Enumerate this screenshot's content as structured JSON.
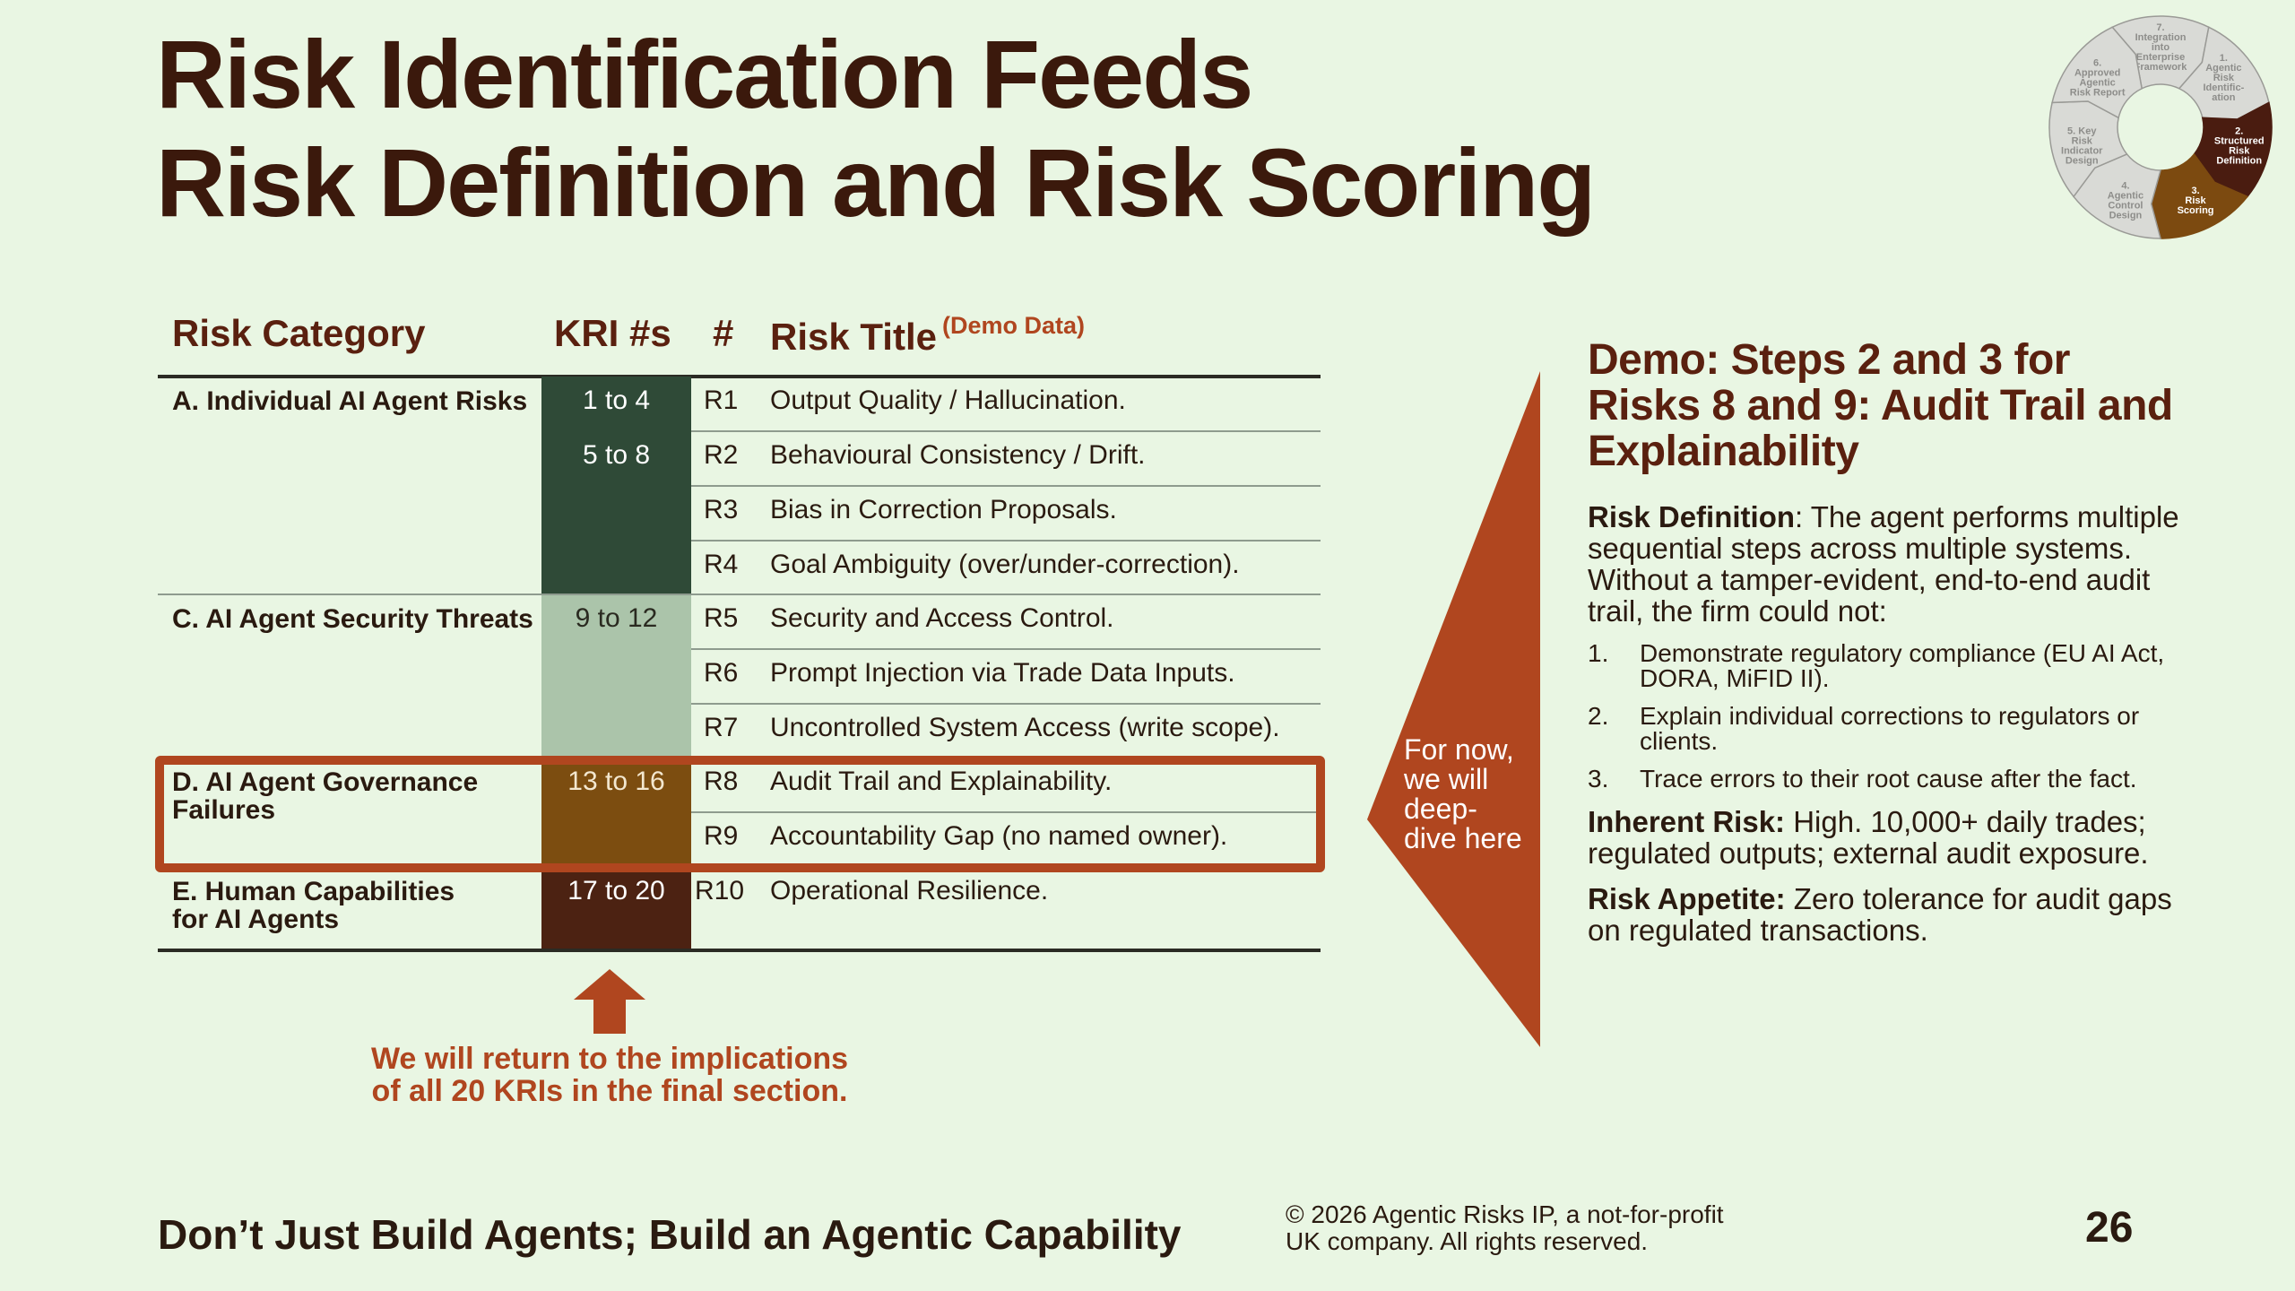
{
  "title": {
    "line1": "Risk Identification Feeds",
    "line2": "Risk Definition and Risk Scoring"
  },
  "cycle": {
    "segments": [
      {
        "label": "7. Integration into Enterprise Framework",
        "lines": [
          "7.",
          "Integration",
          "into",
          "Enterprise",
          "Framework"
        ],
        "state": "inactive"
      },
      {
        "label": "1. Agentic Risk Identification",
        "lines": [
          "1.",
          "Agentic",
          "Risk",
          "Identific-",
          "ation"
        ],
        "state": "inactive"
      },
      {
        "label": "2. Structured Risk Definition",
        "lines": [
          "2.",
          "Structured",
          "Risk",
          "Definition"
        ],
        "state": "active-dark"
      },
      {
        "label": "3. Risk Scoring",
        "lines": [
          "3.",
          "Risk",
          "Scoring"
        ],
        "state": "active-brown"
      },
      {
        "label": "4. Agentic Control Design",
        "lines": [
          "4.",
          "Agentic",
          "Control",
          "Design"
        ],
        "state": "inactive"
      },
      {
        "label": "5. Key Risk Indicator Design",
        "lines": [
          "5. Key",
          "Risk",
          "Indicator",
          "Design"
        ],
        "state": "inactive"
      },
      {
        "label": "6. Approved Agentic Risk Report",
        "lines": [
          "6.",
          "Approved",
          "Agentic",
          "Risk Report"
        ],
        "state": "inactive"
      }
    ],
    "colors": {
      "inactive": "#d9dad6",
      "active-dark": "#4a1c10",
      "active-brown": "#7c4a10"
    }
  },
  "table": {
    "headers": {
      "category": "Risk Category",
      "kri": "KRI #s",
      "num": "#",
      "title": "Risk Title",
      "title_note": "(Demo Data)"
    },
    "categories": [
      {
        "name": "A. Individual AI Agent Risks",
        "color": "#2f4a37"
      },
      {
        "name": "C. AI Agent Security Threats",
        "color": "#abc4aa"
      },
      {
        "name": "D. AI Agent Governance Failures",
        "color": "#7c4d10"
      },
      {
        "name": "E. Human Capabilities for AI Agents",
        "color": "#4c2212"
      }
    ],
    "kri": [
      "1 to 4",
      "5 to 8",
      "9 to 12",
      "13 to 16",
      "17 to 20"
    ],
    "risks": [
      {
        "id": "R1",
        "title": "Output Quality / Hallucination."
      },
      {
        "id": "R2",
        "title": "Behavioural Consistency / Drift."
      },
      {
        "id": "R3",
        "title": "Bias in Correction Proposals."
      },
      {
        "id": "R4",
        "title": "Goal Ambiguity (over/under-correction)."
      },
      {
        "id": "R5",
        "title": "Security and Access Control."
      },
      {
        "id": "R6",
        "title": "Prompt Injection via Trade Data Inputs."
      },
      {
        "id": "R7",
        "title": "Uncontrolled System Access (write scope)."
      },
      {
        "id": "R8",
        "title": "Audit Trail and Explainability."
      },
      {
        "id": "R9",
        "title": "Accountability Gap (no named owner)."
      },
      {
        "id": "R10",
        "title": "Operational Resilience."
      }
    ]
  },
  "note": {
    "line1": "We will return to the implications",
    "line2": "of all 20 KRIs in the final section."
  },
  "pointer_text": [
    "For now,",
    "we will",
    "deep-",
    "dive here"
  ],
  "panel": {
    "heading": "Demo: Steps 2 and 3 for Risks 8 and 9: Audit Trail and Explainability",
    "definition_label": "Risk Definition",
    "definition_text": ": The agent performs multiple sequential steps across multiple systems. Without a tamper-evident, end-to-end audit trail, the firm could not:",
    "items": [
      {
        "n": "1.",
        "text": "Demonstrate regulatory compliance (EU AI Act, DORA, MiFID II)."
      },
      {
        "n": "2.",
        "text": "Explain individual corrections to regulators or clients."
      },
      {
        "n": "3.",
        "text": "Trace errors to their root cause after the fact."
      }
    ],
    "inherent_label": "Inherent Risk:",
    "inherent_text": " High. 10,000+ daily trades; regulated outputs; external audit exposure.",
    "appetite_label": "Risk Appetite:",
    "appetite_text": " Zero tolerance for audit gaps on regulated transactions."
  },
  "colors": {
    "accent": "#b0461f",
    "title": "#3b190c",
    "background": "#e9f6e3"
  },
  "footer": {
    "tagline": "Don’t Just Build Agents; Build an Agentic Capability",
    "copyright1": "© 2026 Agentic Risks IP, a not-for-profit",
    "copyright2": "UK company. All rights reserved.",
    "page": "26"
  }
}
